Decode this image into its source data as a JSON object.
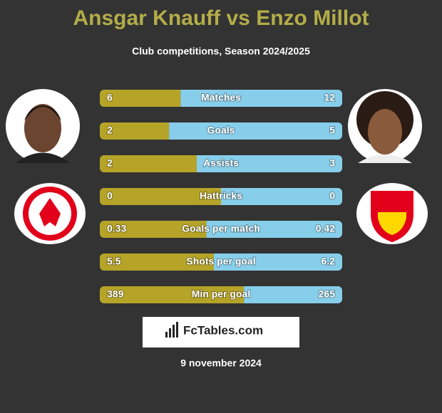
{
  "header": {
    "title": "Ansgar Knauff vs Enzo Millot",
    "subtitle": "Club competitions, Season 2024/2025"
  },
  "rows": [
    {
      "label": "Matches",
      "left": 6,
      "right": 12
    },
    {
      "label": "Goals",
      "left": 2,
      "right": 5
    },
    {
      "label": "Assists",
      "left": 2,
      "right": 3
    },
    {
      "label": "Hattricks",
      "left": 0,
      "right": 0
    },
    {
      "label": "Goals per match",
      "left": 0.33,
      "right": 0.42
    },
    {
      "label": "Shots per goal",
      "left": 5.5,
      "right": 6.2
    },
    {
      "label": "Min per goal",
      "left": 389,
      "right": 265
    }
  ],
  "footer": {
    "brand": "FcTables.com",
    "date": "9 november 2024"
  }
}
